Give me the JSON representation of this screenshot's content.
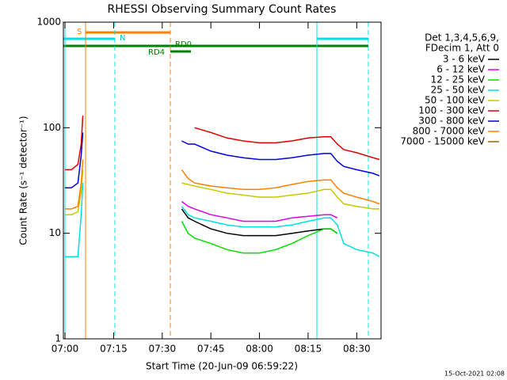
{
  "chart_data": {
    "type": "line",
    "title": "RHESSI Observing Summary Count Rates",
    "x_label": "Start Time (20-Jun-09 06:59:22)",
    "y_label": "Count Rate (s⁻¹ detector⁻¹)",
    "legend_header": [
      "Det 1,3,4,5,6,9,",
      "FDecim 1, Att 0"
    ],
    "footer": "15-Oct-2021 02:08",
    "annotations": [
      "S",
      "N",
      "RD0",
      "RD4"
    ],
    "log_y": true,
    "xlim": [
      -0.5,
      97.5
    ],
    "ylim": [
      1,
      1000
    ],
    "xticks": [
      {
        "value": 0,
        "label": "07:00"
      },
      {
        "value": 15,
        "label": "07:15"
      },
      {
        "value": 30,
        "label": "07:30"
      },
      {
        "value": 45,
        "label": "07:45"
      },
      {
        "value": 60,
        "label": "08:00"
      },
      {
        "value": 75,
        "label": "08:15"
      },
      {
        "value": 90,
        "label": "08:30"
      }
    ],
    "yticks": [
      1,
      10,
      100,
      1000
    ],
    "x": [
      0,
      2,
      4,
      5,
      5.5,
      20,
      36,
      38,
      40,
      45,
      50,
      55,
      60,
      65,
      70,
      75,
      80,
      82,
      84,
      86,
      90,
      95,
      97
    ],
    "series": [
      {
        "name": "3 - 6 keV",
        "color": "#000000",
        "values": [
          null,
          null,
          null,
          null,
          null,
          null,
          17,
          14,
          13,
          11,
          10,
          9.5,
          9.5,
          9.5,
          10,
          10.5,
          11,
          11,
          10,
          null,
          null,
          null,
          null
        ]
      },
      {
        "name": "6 - 12 keV",
        "color": "#e000e0",
        "values": [
          null,
          null,
          null,
          null,
          null,
          null,
          20,
          18,
          17,
          15,
          14,
          13,
          13,
          13,
          14,
          14.5,
          15,
          15,
          14,
          null,
          null,
          null,
          null
        ]
      },
      {
        "name": "12 - 25 keV",
        "color": "#00e000",
        "values": [
          null,
          null,
          null,
          null,
          null,
          null,
          13,
          10,
          9,
          8,
          7,
          6.5,
          6.5,
          7,
          8,
          9.5,
          11,
          11,
          10,
          null,
          null,
          null,
          null
        ]
      },
      {
        "name": "25 - 50 keV",
        "color": "#00e0e0",
        "values": [
          6,
          6,
          6,
          15,
          30,
          null,
          18,
          15,
          14,
          13,
          12,
          11.5,
          11.5,
          11.5,
          12,
          13,
          14,
          14,
          12,
          8,
          7,
          6.5,
          6
        ]
      },
      {
        "name": "50 - 100 keV",
        "color": "#c8c800",
        "values": [
          15,
          15,
          16,
          25,
          40,
          null,
          30,
          29,
          28,
          26,
          24,
          23,
          22,
          22,
          23,
          24,
          26,
          26,
          22,
          19,
          18,
          17,
          17
        ]
      },
      {
        "name": "100 - 300 keV",
        "color": "#e00000",
        "values": [
          40,
          40,
          45,
          70,
          130,
          null,
          null,
          null,
          100,
          90,
          80,
          75,
          72,
          72,
          75,
          80,
          82,
          82,
          70,
          62,
          58,
          52,
          50
        ]
      },
      {
        "name": "300 - 800 keV",
        "color": "#0000e0",
        "values": [
          27,
          27,
          30,
          55,
          90,
          null,
          75,
          70,
          70,
          60,
          55,
          52,
          50,
          50,
          52,
          55,
          57,
          57,
          48,
          43,
          40,
          37,
          35
        ]
      },
      {
        "name": "800 - 7000 keV",
        "color": "#ff8000",
        "values": [
          17,
          17,
          18,
          30,
          50,
          null,
          40,
          33,
          30,
          28,
          27,
          26,
          26,
          27,
          29,
          31,
          32,
          32,
          27,
          24,
          22,
          20,
          19
        ]
      },
      {
        "name": "7000 - 15000 keV",
        "color": "#a06400",
        "values": [
          null,
          null,
          null,
          null,
          null,
          null,
          null,
          null,
          null,
          null,
          null,
          null,
          null,
          null,
          null,
          null,
          null,
          null,
          null,
          null,
          null,
          null,
          null
        ]
      }
    ]
  }
}
